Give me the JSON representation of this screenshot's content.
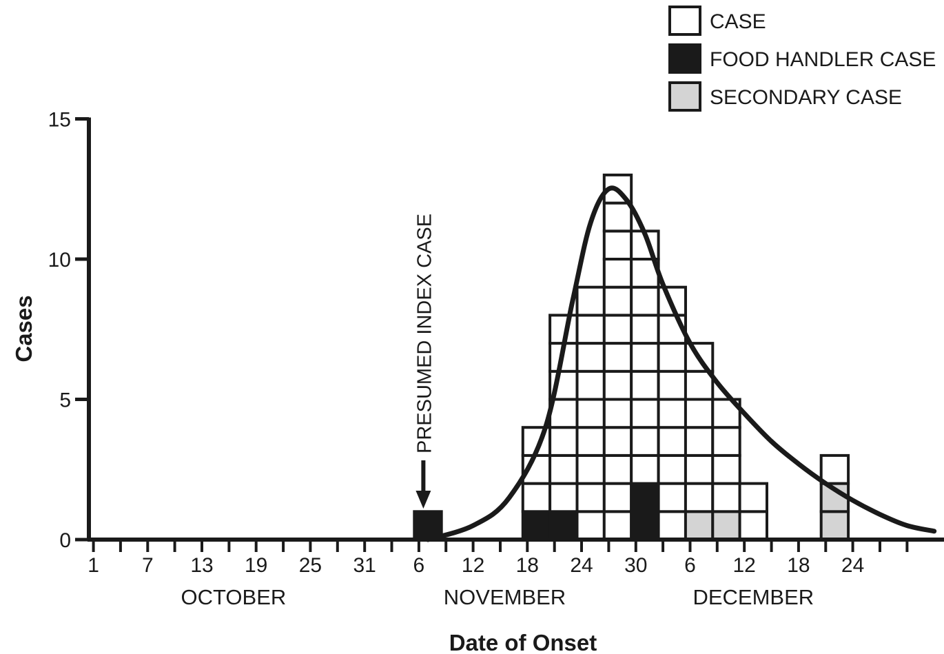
{
  "chart_data": {
    "type": "bar",
    "subtype": "stacked-box epidemic curve with fitted curve",
    "xlabel": "Date of Onset",
    "ylabel": "Cases",
    "ylim": [
      0,
      15
    ],
    "y_ticks": [
      "0",
      "5",
      "10",
      "15"
    ],
    "x_tick_labels": [
      "1",
      "7",
      "13",
      "19",
      "25",
      "31",
      "6",
      "12",
      "18",
      "24",
      "30",
      "6",
      "12",
      "18",
      "24"
    ],
    "months": [
      "OCTOBER",
      "NOVEMBER",
      "DECEMBER"
    ],
    "legend": {
      "placement": "top-right",
      "entries": [
        {
          "key": "case",
          "label": "CASE",
          "color": "#ffffff"
        },
        {
          "key": "food_handler",
          "label": "FOOD HANDLER CASE",
          "color": "#1a1a1a"
        },
        {
          "key": "secondary",
          "label": "SECONDARY CASE",
          "color": "#d4d4d4"
        }
      ]
    },
    "annotation": "PRESUMED INDEX CASE",
    "bin_days": 3,
    "bins": [
      {
        "start": "Nov 6",
        "case": 0,
        "food_handler": 1,
        "secondary": 0
      },
      {
        "start": "Nov 18",
        "case": 3,
        "food_handler": 1,
        "secondary": 0
      },
      {
        "start": "Nov 21",
        "case": 7,
        "food_handler": 1,
        "secondary": 0
      },
      {
        "start": "Nov 24",
        "case": 9,
        "food_handler": 0,
        "secondary": 0
      },
      {
        "start": "Nov 27",
        "case": 13,
        "food_handler": 0,
        "secondary": 0
      },
      {
        "start": "Nov 30",
        "case": 9,
        "food_handler": 2,
        "secondary": 0
      },
      {
        "start": "Dec 3",
        "case": 9,
        "food_handler": 0,
        "secondary": 0
      },
      {
        "start": "Dec 6",
        "case": 6,
        "food_handler": 0,
        "secondary": 1
      },
      {
        "start": "Dec 9",
        "case": 4,
        "food_handler": 0,
        "secondary": 1
      },
      {
        "start": "Dec 12",
        "case": 2,
        "food_handler": 0,
        "secondary": 0
      },
      {
        "start": "Dec 21",
        "case": 1,
        "food_handler": 0,
        "secondary": 2
      }
    ],
    "fitted_curve": {
      "peak_date": "Nov 27",
      "peak_value": 12.5,
      "points": [
        {
          "date": "Nov 7",
          "y": 0.0
        },
        {
          "date": "Nov 12",
          "y": 0.5
        },
        {
          "date": "Nov 16",
          "y": 1.5
        },
        {
          "date": "Nov 20",
          "y": 4.0
        },
        {
          "date": "Nov 23",
          "y": 8.5
        },
        {
          "date": "Nov 25",
          "y": 11.3
        },
        {
          "date": "Nov 27",
          "y": 12.5
        },
        {
          "date": "Nov 29",
          "y": 12.1
        },
        {
          "date": "Dec 1",
          "y": 10.9
        },
        {
          "date": "Dec 3",
          "y": 9.1
        },
        {
          "date": "Dec 6",
          "y": 7.0
        },
        {
          "date": "Dec 9",
          "y": 5.6
        },
        {
          "date": "Dec 12",
          "y": 4.5
        },
        {
          "date": "Dec 15",
          "y": 3.5
        },
        {
          "date": "Dec 18",
          "y": 2.7
        },
        {
          "date": "Dec 21",
          "y": 2.0
        },
        {
          "date": "Dec 24",
          "y": 1.4
        },
        {
          "date": "Dec 27",
          "y": 0.9
        },
        {
          "date": "Dec 30",
          "y": 0.5
        },
        {
          "date": "Jan 2",
          "y": 0.3
        }
      ]
    }
  }
}
